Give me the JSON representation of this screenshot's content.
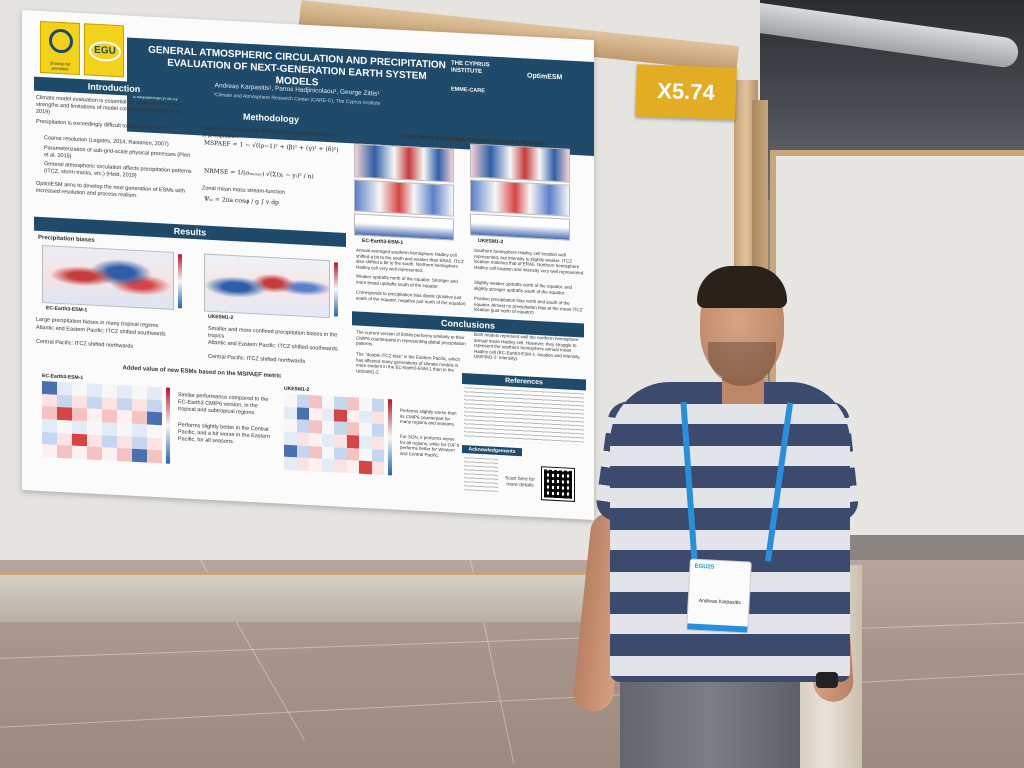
{
  "booth": {
    "label": "X5.74"
  },
  "poster": {
    "title": "GENERAL ATMOSPHERIC CIRCULATION AND PRECIPITATION EVALUATION OF NEXT-GENERATION EARTH SYSTEM MODELS",
    "authors": "Andreas Karpasitis¹, Panos Hadjinicolaou¹, George Zittis¹",
    "affiliation": "¹Climate and Atmosphere Research Center (CARE-C), The Cyprus Institute",
    "email": "a.karpasitis@cyi.ac.cy",
    "logo_sharing": "Sharing not permitted",
    "logo_egu": "EGU",
    "logo_cyprus": "THE CYPRUS INSTITUTE",
    "logo_emme": "EMME-CARE",
    "logo_optim": "OptimESM",
    "sections": {
      "introduction": "Introduction",
      "methodology": "Methodology",
      "results": "Results",
      "conclusions": "Conclusions",
      "references": "References",
      "acknowledgements": "Acknowledgements"
    },
    "intro_bullets": [
      "Climate model evaluation is essential for understanding the strengths and limitations of model components (Eyring et al. 2019)",
      "Precipitation is exceedingly difficult to represent due to:",
      "Coarse resolution (Legates, 2014; Raisanen, 2007)",
      "Parameterization of sub-grid-scale physical processes (Pieri et al. 2015)",
      "General atmospheric circulation affects precipitation patterns (ITCZ, storm tracks, etc.) (Held, 2019)",
      "OptimESM aims to develop the next generation of ESMs with increased resolution and process realism."
    ],
    "method_text": "MSPAEF metric used to evaluate the spatial distribution of precipitation:",
    "formula_mspaef": "MSPAEF = 1 − √((ρ−1)² + (β)² + (γ)² + (δ)²)",
    "formula_nrmse": "NRMSE = 1/(σₘₒₙₑₗ) √(Σ(xᵢ − yᵢ)² / n)",
    "method_text2": "Zonal mean mass stream-function",
    "formula_psi": "Ψₘ = 2πa cosφ / g ∫ v dp",
    "results_sub": "Precipitation biases",
    "map_label_1": "EC-Earth3-ESM-1",
    "map_label_2": "UKESM1-2",
    "results_bullets_left": [
      "Large precipitation biases in many tropical regions",
      "Atlantic and Eastern Pacific: ITCZ shifted southwards",
      "Central Pacific: ITCZ shifted northwards"
    ],
    "results_bullets_right": [
      "Smaller and more confined precipitation biases in the tropics",
      "Atlantic and Eastern Pacific: ITCZ shifted southwards",
      "Central Pacific: ITCZ shifted northwards"
    ],
    "added_value_title": "Added value of new ESMs based on the MSPAEF metric",
    "heat_label_1": "EC-Earth3-ESM-1",
    "heat_label_2": "UKESM1-2",
    "heat_bullets_left": [
      "Similar performance compared to the EC-Earth3 CMIP6 version, in the tropical and subtropical regions.",
      "Performs slightly better in the Central Pacific, and a bit worse in the Eastern Pacific, for all seasons."
    ],
    "heat_bullets_right": [
      "Performs slightly worse than its CMIP6 counterpart for many regions and seasons.",
      "For SON, it performs worse for all regions, while for DJF it performs better for Western and Central Pacific."
    ],
    "streamfunction_title": "Zonal Mass Streamfunction and Pressure Velocity",
    "stream_bullets_left": [
      "Annual averaged southern hemisphere Hadley cell shifted a bit to the south and weaker than ERA5. ITCZ also shifted a bit to the south. Northern hemisphere Hadley cell very well represented.",
      "Weaker updrafts north of the equator. Stronger and more broad updrafts south of the equator.",
      "Corresponds to precipitation bias dipole (positive just south of the equator, negative just north of the equator)"
    ],
    "stream_bullets_right": [
      "Southern hemisphere Hadley cell location well represented, but intensity is slightly weaker. ITCZ location matches that of ERA5. Northern hemisphere Hadley cell location and intensity very well represented.",
      "Slightly weaker updrafts north of the equator, and slightly stronger updrafts south of the equator.",
      "Positive precipitation bias north and south of the equator. Almost no precipitation bias at the mean ITCZ location (just north of equator)."
    ],
    "conclusions_left": [
      "The current version of ESMs performs similarly to their CMIP6 counterparts in representing global precipitation patterns.",
      "The \"double ITCZ bias\" in the Eastern Pacific, which has affected many generations of climate models is more evident in the EC-Earth3-ESM-1 than in the UKESM1-2."
    ],
    "conclusions_right": [
      "Both models represent well the northern hemisphere annual mean Hadley cell. However, they struggle to represent the southern hemisphere annual mean Hadley cell (EC-Earth3-ESM-1: location and intensity, UKESM1-2: intensity)."
    ],
    "scan_text": "Scan here for more details"
  },
  "badge": {
    "name": "Andreas Karpasitis",
    "event": "EGU25"
  },
  "colors": {
    "poster_navy": "#1f4a6a",
    "booth_yellow": "#e2ad24",
    "lanyard_blue": "#2a8fd8",
    "shirt_navy": "#3c4a6e",
    "shirt_grey": "#e2e4ea"
  }
}
